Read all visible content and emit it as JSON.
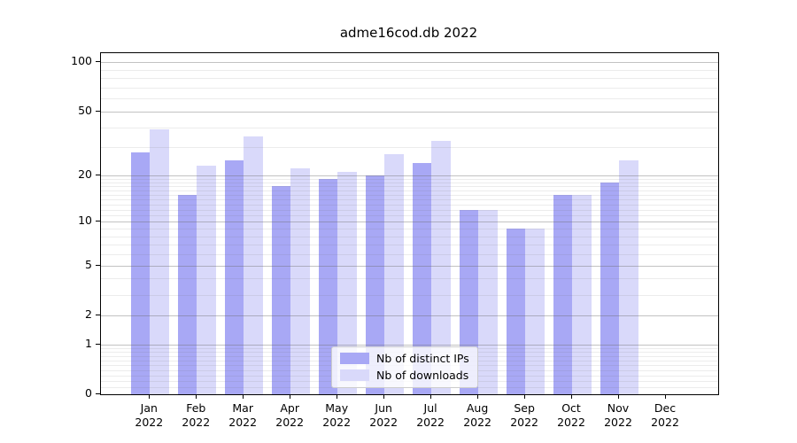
{
  "title": "adme16cod.db 2022",
  "chart_data": {
    "type": "bar",
    "title": "adme16cod.db 2022",
    "categories": [
      "Jan",
      "Feb",
      "Mar",
      "Apr",
      "May",
      "Jun",
      "Jul",
      "Aug",
      "Sep",
      "Oct",
      "Nov",
      "Dec"
    ],
    "category_year_label": "2022",
    "series": [
      {
        "name": "Nb of distinct IPs",
        "color": "#a8a8f5",
        "values": [
          28,
          15,
          25,
          17,
          19,
          20,
          24,
          12,
          9,
          15,
          18,
          0
        ]
      },
      {
        "name": "Nb of downloads",
        "color": "#d9d9fa",
        "values": [
          39,
          23,
          35,
          22,
          21,
          27,
          33,
          12,
          9,
          15,
          25,
          0
        ]
      }
    ],
    "xlabel": "",
    "ylabel": "",
    "yscale": "log1p",
    "ylim": [
      0,
      113.7
    ],
    "y_ticks": [
      0,
      1,
      2,
      5,
      10,
      20,
      50,
      100
    ],
    "y_minor_gridlines": [
      0.1,
      0.2,
      0.3,
      0.4,
      0.5,
      0.6,
      0.7,
      0.8,
      0.9,
      3,
      4,
      6,
      7,
      8,
      9,
      11,
      12,
      13,
      14,
      15,
      16,
      17,
      18,
      19,
      30,
      40,
      60,
      70,
      80,
      90
    ],
    "grid": "both, drawn over bars",
    "legend_position": "lower center inside plot",
    "colors": {
      "spine": "#000000",
      "background": "#ffffff",
      "major_grid": "#c9c9c9",
      "minor_grid": "#ececec",
      "legend_border": "#cccccc"
    }
  }
}
